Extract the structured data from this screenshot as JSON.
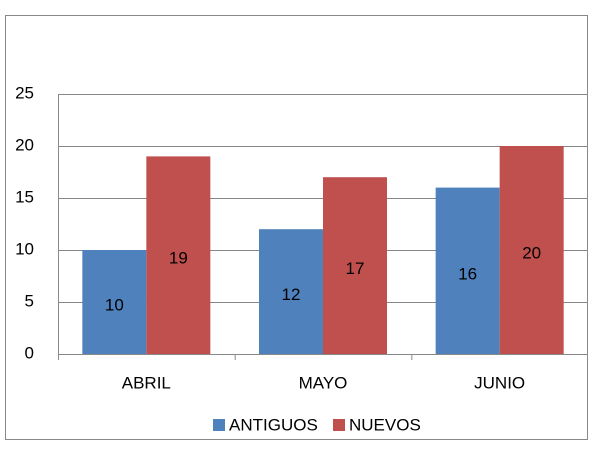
{
  "chart_data": {
    "type": "bar",
    "categories": [
      "ABRIL",
      "MAYO",
      "JUNIO"
    ],
    "series": [
      {
        "name": "ANTIGUOS",
        "color": "#4f81bd",
        "values": [
          10,
          12,
          16
        ]
      },
      {
        "name": "NUEVOS",
        "color": "#c0504d",
        "values": [
          19,
          17,
          20
        ]
      }
    ],
    "ylim": [
      0,
      25
    ],
    "yticks": [
      0,
      5,
      10,
      15,
      20,
      25
    ],
    "grid": true,
    "legend": "bottom"
  }
}
